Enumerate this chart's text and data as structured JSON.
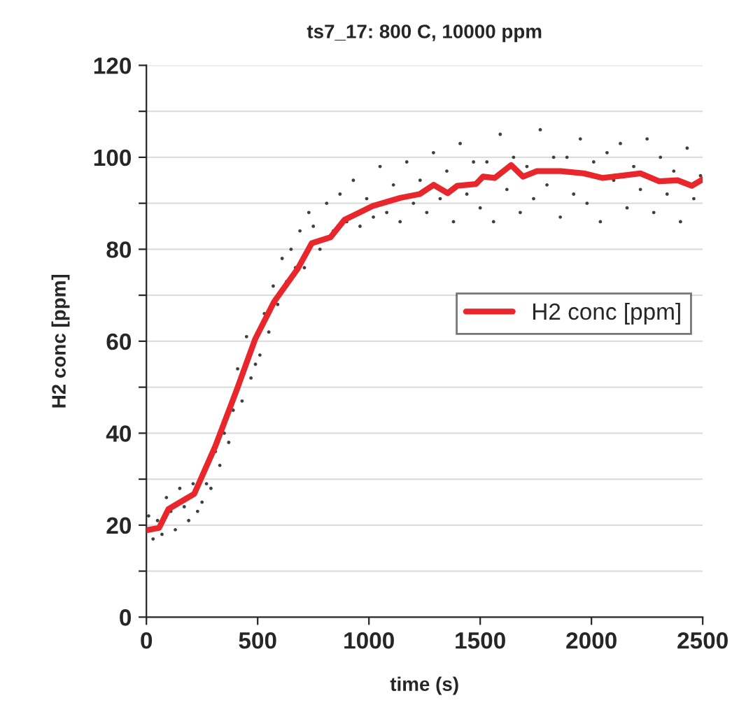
{
  "chart_data": {
    "type": "line",
    "title": "ts7_17: 800 C, 10000 ppm",
    "xlabel": "time (s)",
    "ylabel": "H2 conc [ppm]",
    "xlim": [
      0,
      2500
    ],
    "xticks": [
      0,
      500,
      1000,
      1500,
      2000,
      2500
    ],
    "ylim": [
      0,
      120
    ],
    "yticks": [
      0,
      {
        "value": 10,
        "label": null
      },
      20,
      {
        "value": 30,
        "label": null
      },
      40,
      {
        "value": 50,
        "label": null
      },
      60,
      {
        "value": 70,
        "label": null
      },
      80,
      {
        "value": 90,
        "label": null
      },
      100,
      {
        "value": 110,
        "label": null
      },
      120
    ],
    "grid": "y",
    "legend": "right",
    "marker": "none",
    "line_style": "solid",
    "series": [
      {
        "type": "scatter",
        "color": "#404040",
        "x": [
          10,
          30,
          50,
          70,
          90,
          110,
          130,
          150,
          170,
          190,
          210,
          230,
          250,
          270,
          290,
          310,
          330,
          350,
          370,
          390,
          410,
          430,
          450,
          470,
          490,
          510,
          530,
          550,
          570,
          590,
          610,
          630,
          650,
          670,
          690,
          710,
          730,
          750,
          780,
          810,
          840,
          870,
          900,
          930,
          960,
          990,
          1020,
          1050,
          1080,
          1110,
          1140,
          1170,
          1200,
          1230,
          1260,
          1290,
          1320,
          1350,
          1380,
          1410,
          1440,
          1470,
          1500,
          1530,
          1560,
          1590,
          1620,
          1650,
          1680,
          1710,
          1740,
          1770,
          1800,
          1830,
          1860,
          1890,
          1920,
          1950,
          1980,
          2010,
          2040,
          2070,
          2100,
          2130,
          2160,
          2190,
          2220,
          2250,
          2280,
          2310,
          2340,
          2370,
          2400,
          2430,
          2460,
          2490
        ],
        "values": [
          22,
          17,
          21,
          18,
          26,
          23,
          19,
          28,
          24,
          21,
          29,
          23,
          25,
          29,
          28,
          36,
          33,
          40,
          38,
          45,
          54,
          47,
          61,
          52,
          55,
          57,
          66,
          62,
          72,
          68,
          78,
          73,
          80,
          76,
          84,
          76,
          88,
          85,
          80,
          90,
          84,
          92,
          86,
          95,
          85,
          91,
          87,
          98,
          88,
          94,
          86,
          99,
          90,
          95,
          88,
          101,
          91,
          97,
          86,
          103,
          92,
          99,
          89,
          99,
          86,
          105,
          93,
          100,
          88,
          98,
          91,
          106,
          94,
          100,
          87,
          100,
          92,
          104,
          90,
          99,
          86,
          101,
          95,
          103,
          89,
          98,
          93,
          104,
          88,
          100,
          92,
          97,
          86,
          102,
          91,
          96
        ]
      },
      {
        "name": "H2 conc [ppm]",
        "color": "#e8262b",
        "x": [
          0,
          57,
          99,
          152,
          215,
          310,
          405,
          489,
          574,
          679,
          743,
          827,
          890,
          1017,
          1143,
          1228,
          1291,
          1354,
          1397,
          1481,
          1513,
          1565,
          1639,
          1692,
          1755,
          1861,
          1966,
          2051,
          2220,
          2304,
          2388,
          2451,
          2500
        ],
        "values": [
          18.9,
          19.4,
          23.5,
          25,
          26.8,
          37.2,
          49.3,
          60.5,
          68.6,
          75.7,
          81.3,
          82.6,
          86.4,
          89.4,
          91.2,
          92,
          94,
          92.2,
          93.8,
          94.2,
          95.8,
          95.5,
          98.3,
          95.8,
          97,
          97,
          96.5,
          95.5,
          96.5,
          94.8,
          95,
          93.8,
          95.2
        ]
      }
    ]
  }
}
